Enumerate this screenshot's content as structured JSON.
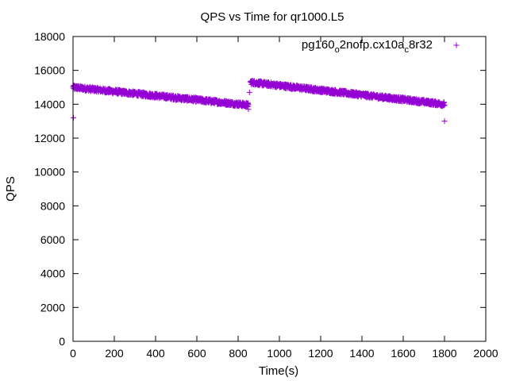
{
  "chart_data": {
    "type": "scatter",
    "title": "QPS vs Time for qr1000.L5",
    "xlabel": "Time(s)",
    "ylabel": "QPS",
    "xlim": [
      0,
      2000
    ],
    "ylim": [
      0,
      18000
    ],
    "xticks": [
      0,
      200,
      400,
      600,
      800,
      1000,
      1200,
      1400,
      1600,
      1800,
      2000
    ],
    "yticks": [
      0,
      2000,
      4000,
      6000,
      8000,
      10000,
      12000,
      14000,
      16000,
      18000
    ],
    "grid": false,
    "legend_position": "top-right",
    "marker": "+",
    "color": "#9400d3",
    "series": [
      {
        "name_parts": [
          "pg160",
          "o",
          "2nofp.cx10a",
          "c",
          "8r32"
        ],
        "segments": [
          {
            "x_start": 0,
            "x_end": 850,
            "y_start": 15000,
            "y_end": 13950
          },
          {
            "x_start": 860,
            "x_end": 1800,
            "y_start": 15300,
            "y_end": 14000
          }
        ],
        "outliers": [
          {
            "x": 2,
            "y": 13200
          },
          {
            "x": 850,
            "y": 13700
          },
          {
            "x": 855,
            "y": 14700
          },
          {
            "x": 1800,
            "y": 13000
          }
        ]
      }
    ]
  }
}
